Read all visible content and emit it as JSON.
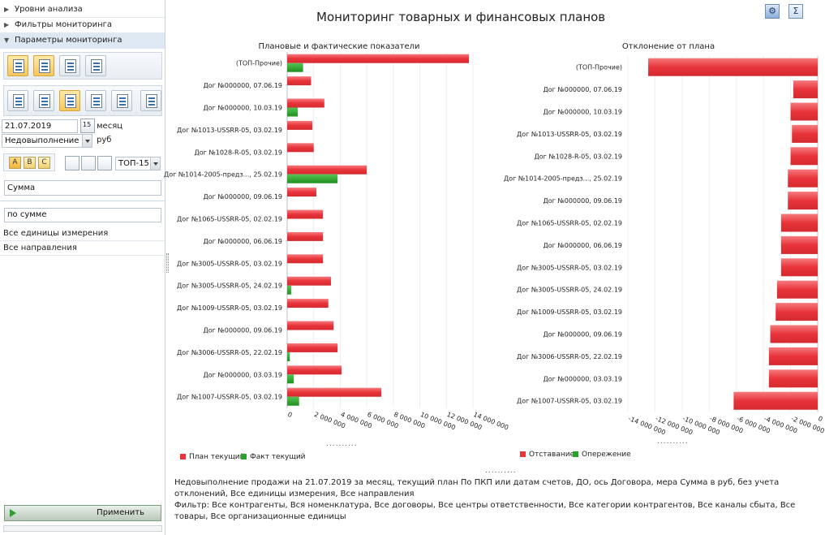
{
  "sidebar": {
    "tree": [
      {
        "label": "Уровни анализа",
        "expanded": false
      },
      {
        "label": "Фильтры мониторинга",
        "expanded": false
      },
      {
        "label": "Параметры мониторинга",
        "expanded": true
      }
    ],
    "date": "21.07.2019",
    "calendar_day": "15",
    "period": "месяц",
    "mode_select": "Недовыполнение",
    "currency": "руб",
    "abc": [
      "A",
      "B",
      "C"
    ],
    "top_select": "ТОП-15",
    "measure_select": "Сумма",
    "sort_select": "по сумме",
    "units": "Все единицы измерения",
    "directions": "Все направления",
    "apply_label": "Применить"
  },
  "header": {
    "title": "Мониторинг товарных и финансовых планов",
    "icons": [
      "settings-icon",
      "sum-icon"
    ],
    "sum_glyph": "Σ"
  },
  "chart_data": [
    {
      "type": "bar",
      "orientation": "horizontal",
      "title": "Плановые и фактические показатели",
      "categories": [
        "(ТОП-Прочие)",
        "Дог №000000, 07.06.19",
        "Дог №000000, 10.03.19",
        "Дог №1013-USSRR-05, 03.02.19",
        "Дог №1028-R-05, 03.02.19",
        "Дог №1014-2005-предз..., 25.02.19",
        "Дог №000000, 09.06.19",
        "Дог №1065-USSRR-05, 02.02.19",
        "Дог №000000, 06.06.19",
        "Дог №3005-USSRR-05, 03.02.19",
        "Дог №3005-USSRR-05, 24.02.19",
        "Дог №1009-USSRR-05, 03.02.19",
        "Дог №000000, 09.06.19",
        "Дог №3006-USSRR-05, 22.02.19",
        "Дог №000000, 03.03.19",
        "Дог №1007-USSRR-05, 03.02.19"
      ],
      "series": [
        {
          "name": "План текущий",
          "color": "#e8343a",
          "values": [
            13700000,
            1800000,
            2800000,
            1900000,
            2000000,
            6000000,
            2200000,
            2700000,
            2700000,
            2700000,
            3300000,
            3100000,
            3500000,
            3800000,
            4100000,
            7100000
          ]
        },
        {
          "name": "Факт текущий",
          "color": "#2aa12a",
          "values": [
            1200000,
            0,
            800000,
            0,
            0,
            3800000,
            0,
            0,
            0,
            0,
            300000,
            0,
            0,
            200000,
            500000,
            900000
          ]
        }
      ],
      "xlim": [
        0,
        14000000
      ],
      "ticks": [
        0,
        2000000,
        4000000,
        6000000,
        8000000,
        10000000,
        12000000,
        14000000
      ],
      "tick_labels": [
        "0",
        "2 000 000",
        "4 000 000",
        "6 000 000",
        "8 000 000",
        "10 000 000",
        "12 000 000",
        "14 000 000"
      ],
      "legend_position": "bottom-left"
    },
    {
      "type": "bar",
      "orientation": "horizontal",
      "title": "Отклонение от плана",
      "categories": [
        "(ТОП-Прочие)",
        "Дог №000000, 07.06.19",
        "Дог №000000, 10.03.19",
        "Дог №1013-USSRR-05, 03.02.19",
        "Дог №1028-R-05, 03.02.19",
        "Дог №1014-2005-предз..., 25.02.19",
        "Дог №000000, 09.06.19",
        "Дог №1065-USSRR-05, 02.02.19",
        "Дог №000000, 06.06.19",
        "Дог №3005-USSRR-05, 03.02.19",
        "Дог №3005-USSRR-05, 24.02.19",
        "Дог №1009-USSRR-05, 03.02.19",
        "Дог №000000, 09.06.19",
        "Дог №3006-USSRR-05, 22.02.19",
        "Дог №000000, 03.03.19",
        "Дог №1007-USSRR-05, 03.02.19"
      ],
      "series": [
        {
          "name": "Отставание",
          "color": "#e8343a",
          "values": [
            -12500000,
            -1800000,
            -2000000,
            -1900000,
            -2000000,
            -2200000,
            -2200000,
            -2700000,
            -2700000,
            -2700000,
            -3000000,
            -3100000,
            -3500000,
            -3600000,
            -3600000,
            -6200000
          ]
        },
        {
          "name": "Опережение",
          "color": "#2aa12a",
          "values": [
            0,
            0,
            0,
            0,
            0,
            0,
            0,
            0,
            0,
            0,
            0,
            0,
            0,
            0,
            0,
            0
          ]
        }
      ],
      "xlim": [
        -14000000,
        0
      ],
      "ticks": [
        -14000000,
        -12000000,
        -10000000,
        -8000000,
        -6000000,
        -4000000,
        -2000000,
        0
      ],
      "tick_labels": [
        "-14 000 000",
        "-12 000 000",
        "-10 000 000",
        "-8 000 000",
        "-6 000 000",
        "-4 000 000",
        "-2 000 000",
        "0"
      ],
      "legend_position": "bottom-left"
    }
  ],
  "legend": {
    "left": [
      {
        "label": "План текущий",
        "color": "#e8343a"
      },
      {
        "label": "Факт текущий",
        "color": "#2aa12a"
      }
    ],
    "right": [
      {
        "label": "Отставание",
        "color": "#e8343a"
      },
      {
        "label": "Опережение",
        "color": "#2aa12a"
      }
    ],
    "dots": ".........."
  },
  "description": {
    "line1": "Недовыполнение продажи на 21.07.2019 за месяц, текущий план По ПКП или датам счетов, ДО, ось Договора, мера Сумма в руб, без учета отклонений, Все единицы измерения, Все направления",
    "line2": "Фильтр: Все контрагенты, Вся номенклатура, Все договоры, Все центры ответственности, Все категории контрагентов, Все каналы сбыта, Все товары, Все организационные единицы"
  }
}
